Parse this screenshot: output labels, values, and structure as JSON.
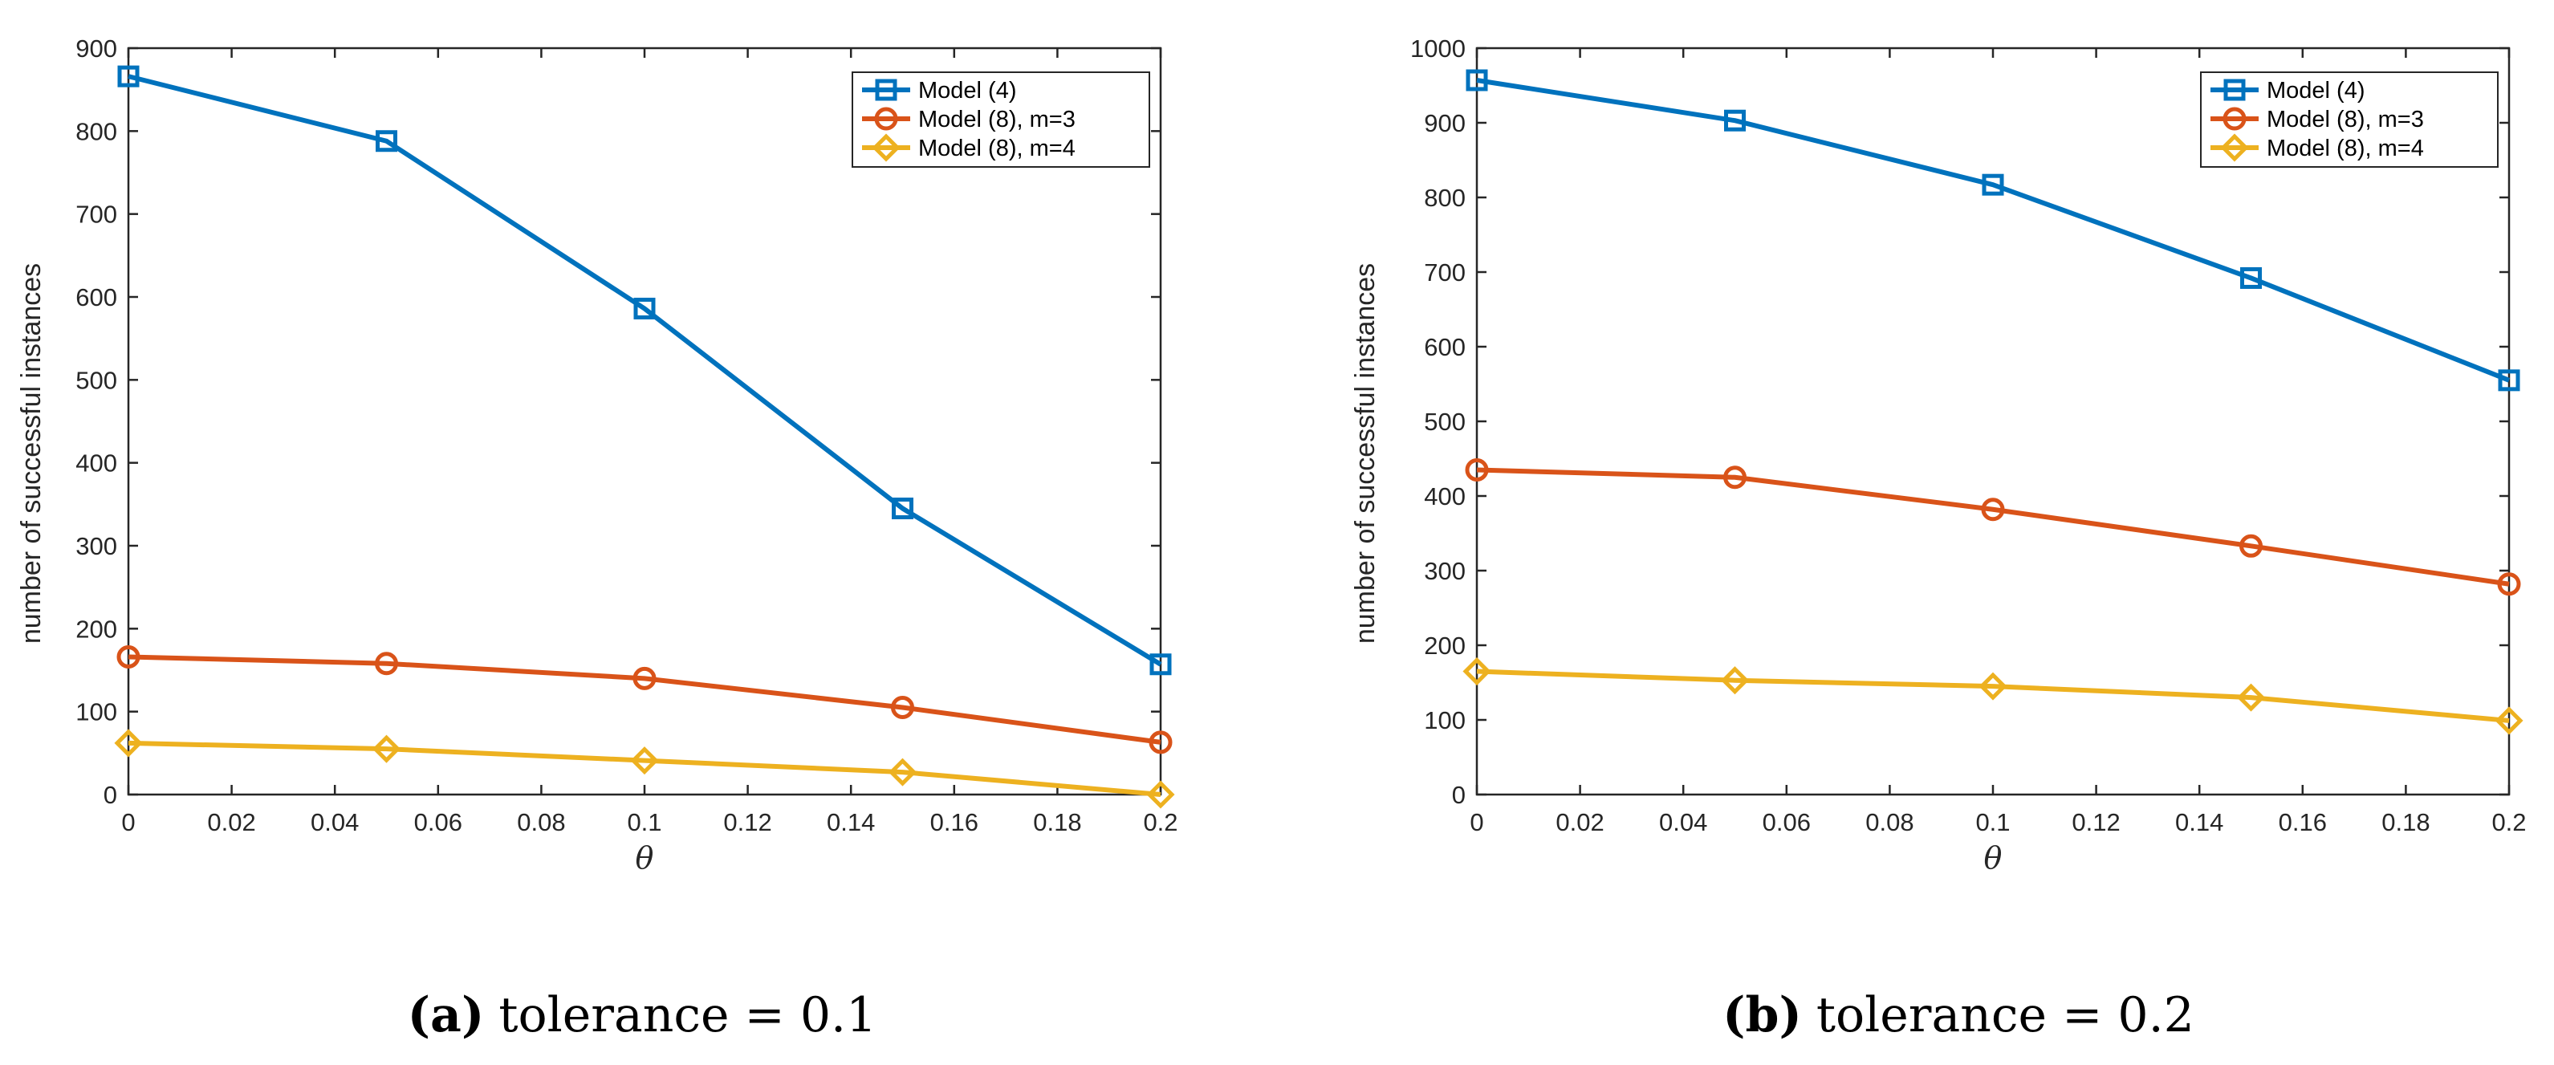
{
  "chart_data": [
    {
      "type": "line",
      "title": "",
      "xlabel": "θ",
      "ylabel": "number of successful instances",
      "xlim": [
        0,
        0.2
      ],
      "ylim": [
        0,
        900
      ],
      "x": [
        0,
        0.05,
        0.1,
        0.15,
        0.2
      ],
      "xticks": [
        "0",
        "0.02",
        "0.04",
        "0.06",
        "0.08",
        "0.1",
        "0.12",
        "0.14",
        "0.16",
        "0.18",
        "0.2"
      ],
      "yticks": [
        "0",
        "100",
        "200",
        "300",
        "400",
        "500",
        "600",
        "700",
        "800",
        "900"
      ],
      "legend_position": "top-right",
      "series": [
        {
          "name": "Model (4)",
          "color": "#0072BD",
          "marker": "square",
          "values": [
            866,
            788,
            586,
            345,
            157
          ]
        },
        {
          "name": "Model (8), m=3",
          "color": "#D95319",
          "marker": "circle",
          "values": [
            166,
            158,
            140,
            105,
            63
          ]
        },
        {
          "name": "Model (8), m=4",
          "color": "#EDB120",
          "marker": "diamond",
          "values": [
            62,
            55,
            41,
            27,
            0
          ]
        }
      ],
      "caption": {
        "letter": "(a)",
        "text": "tolerance = 0.1"
      }
    },
    {
      "type": "line",
      "title": "",
      "xlabel": "θ",
      "ylabel": "number of successful instances",
      "xlim": [
        0,
        0.2
      ],
      "ylim": [
        0,
        1000
      ],
      "x": [
        0,
        0.05,
        0.1,
        0.15,
        0.2
      ],
      "xticks": [
        "0",
        "0.02",
        "0.04",
        "0.06",
        "0.08",
        "0.1",
        "0.12",
        "0.14",
        "0.16",
        "0.18",
        "0.2"
      ],
      "yticks": [
        "0",
        "100",
        "200",
        "300",
        "400",
        "500",
        "600",
        "700",
        "800",
        "900",
        "1000"
      ],
      "legend_position": "top-right",
      "series": [
        {
          "name": "Model (4)",
          "color": "#0072BD",
          "marker": "square",
          "values": [
            957,
            903,
            817,
            692,
            555
          ]
        },
        {
          "name": "Model (8), m=3",
          "color": "#D95319",
          "marker": "circle",
          "values": [
            435,
            425,
            382,
            333,
            282
          ]
        },
        {
          "name": "Model (8), m=4",
          "color": "#EDB120",
          "marker": "diamond",
          "values": [
            165,
            153,
            145,
            130,
            99
          ]
        }
      ],
      "caption": {
        "letter": "(b)",
        "text": "tolerance = 0.2"
      }
    }
  ]
}
